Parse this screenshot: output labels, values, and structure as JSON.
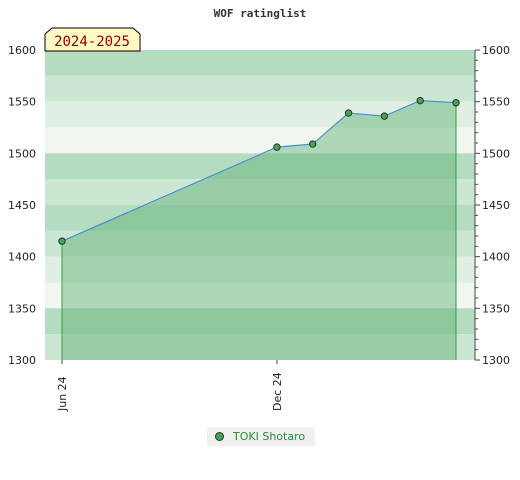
{
  "chart_data": {
    "type": "area",
    "title": "WOF ratinglist",
    "season_label": "2024-2025",
    "ylim": [
      1300,
      1600
    ],
    "y_ticks": [
      1300,
      1350,
      1400,
      1450,
      1500,
      1550,
      1600
    ],
    "x_ticks": [
      {
        "label": "Jun 24",
        "index": 0
      },
      {
        "label": "Dec 24",
        "index": 6
      }
    ],
    "series": [
      {
        "name": "TOKI Shotaro",
        "color": "#4aa05a",
        "values": [
          1415,
          1506,
          1509,
          1539,
          1536,
          1551,
          1549
        ],
        "x_index": [
          0,
          6,
          7,
          8,
          9,
          10,
          11
        ]
      }
    ],
    "grid": true,
    "legend_position": "bottom-center"
  },
  "colors": {
    "band_dark": "#b4dcc0",
    "band_mid": "#cbe6d2",
    "band_light": "#dfefe3",
    "band_lightest": "#f0f7f1",
    "line": "#4a90d0",
    "fill": "#5aaf6e"
  }
}
